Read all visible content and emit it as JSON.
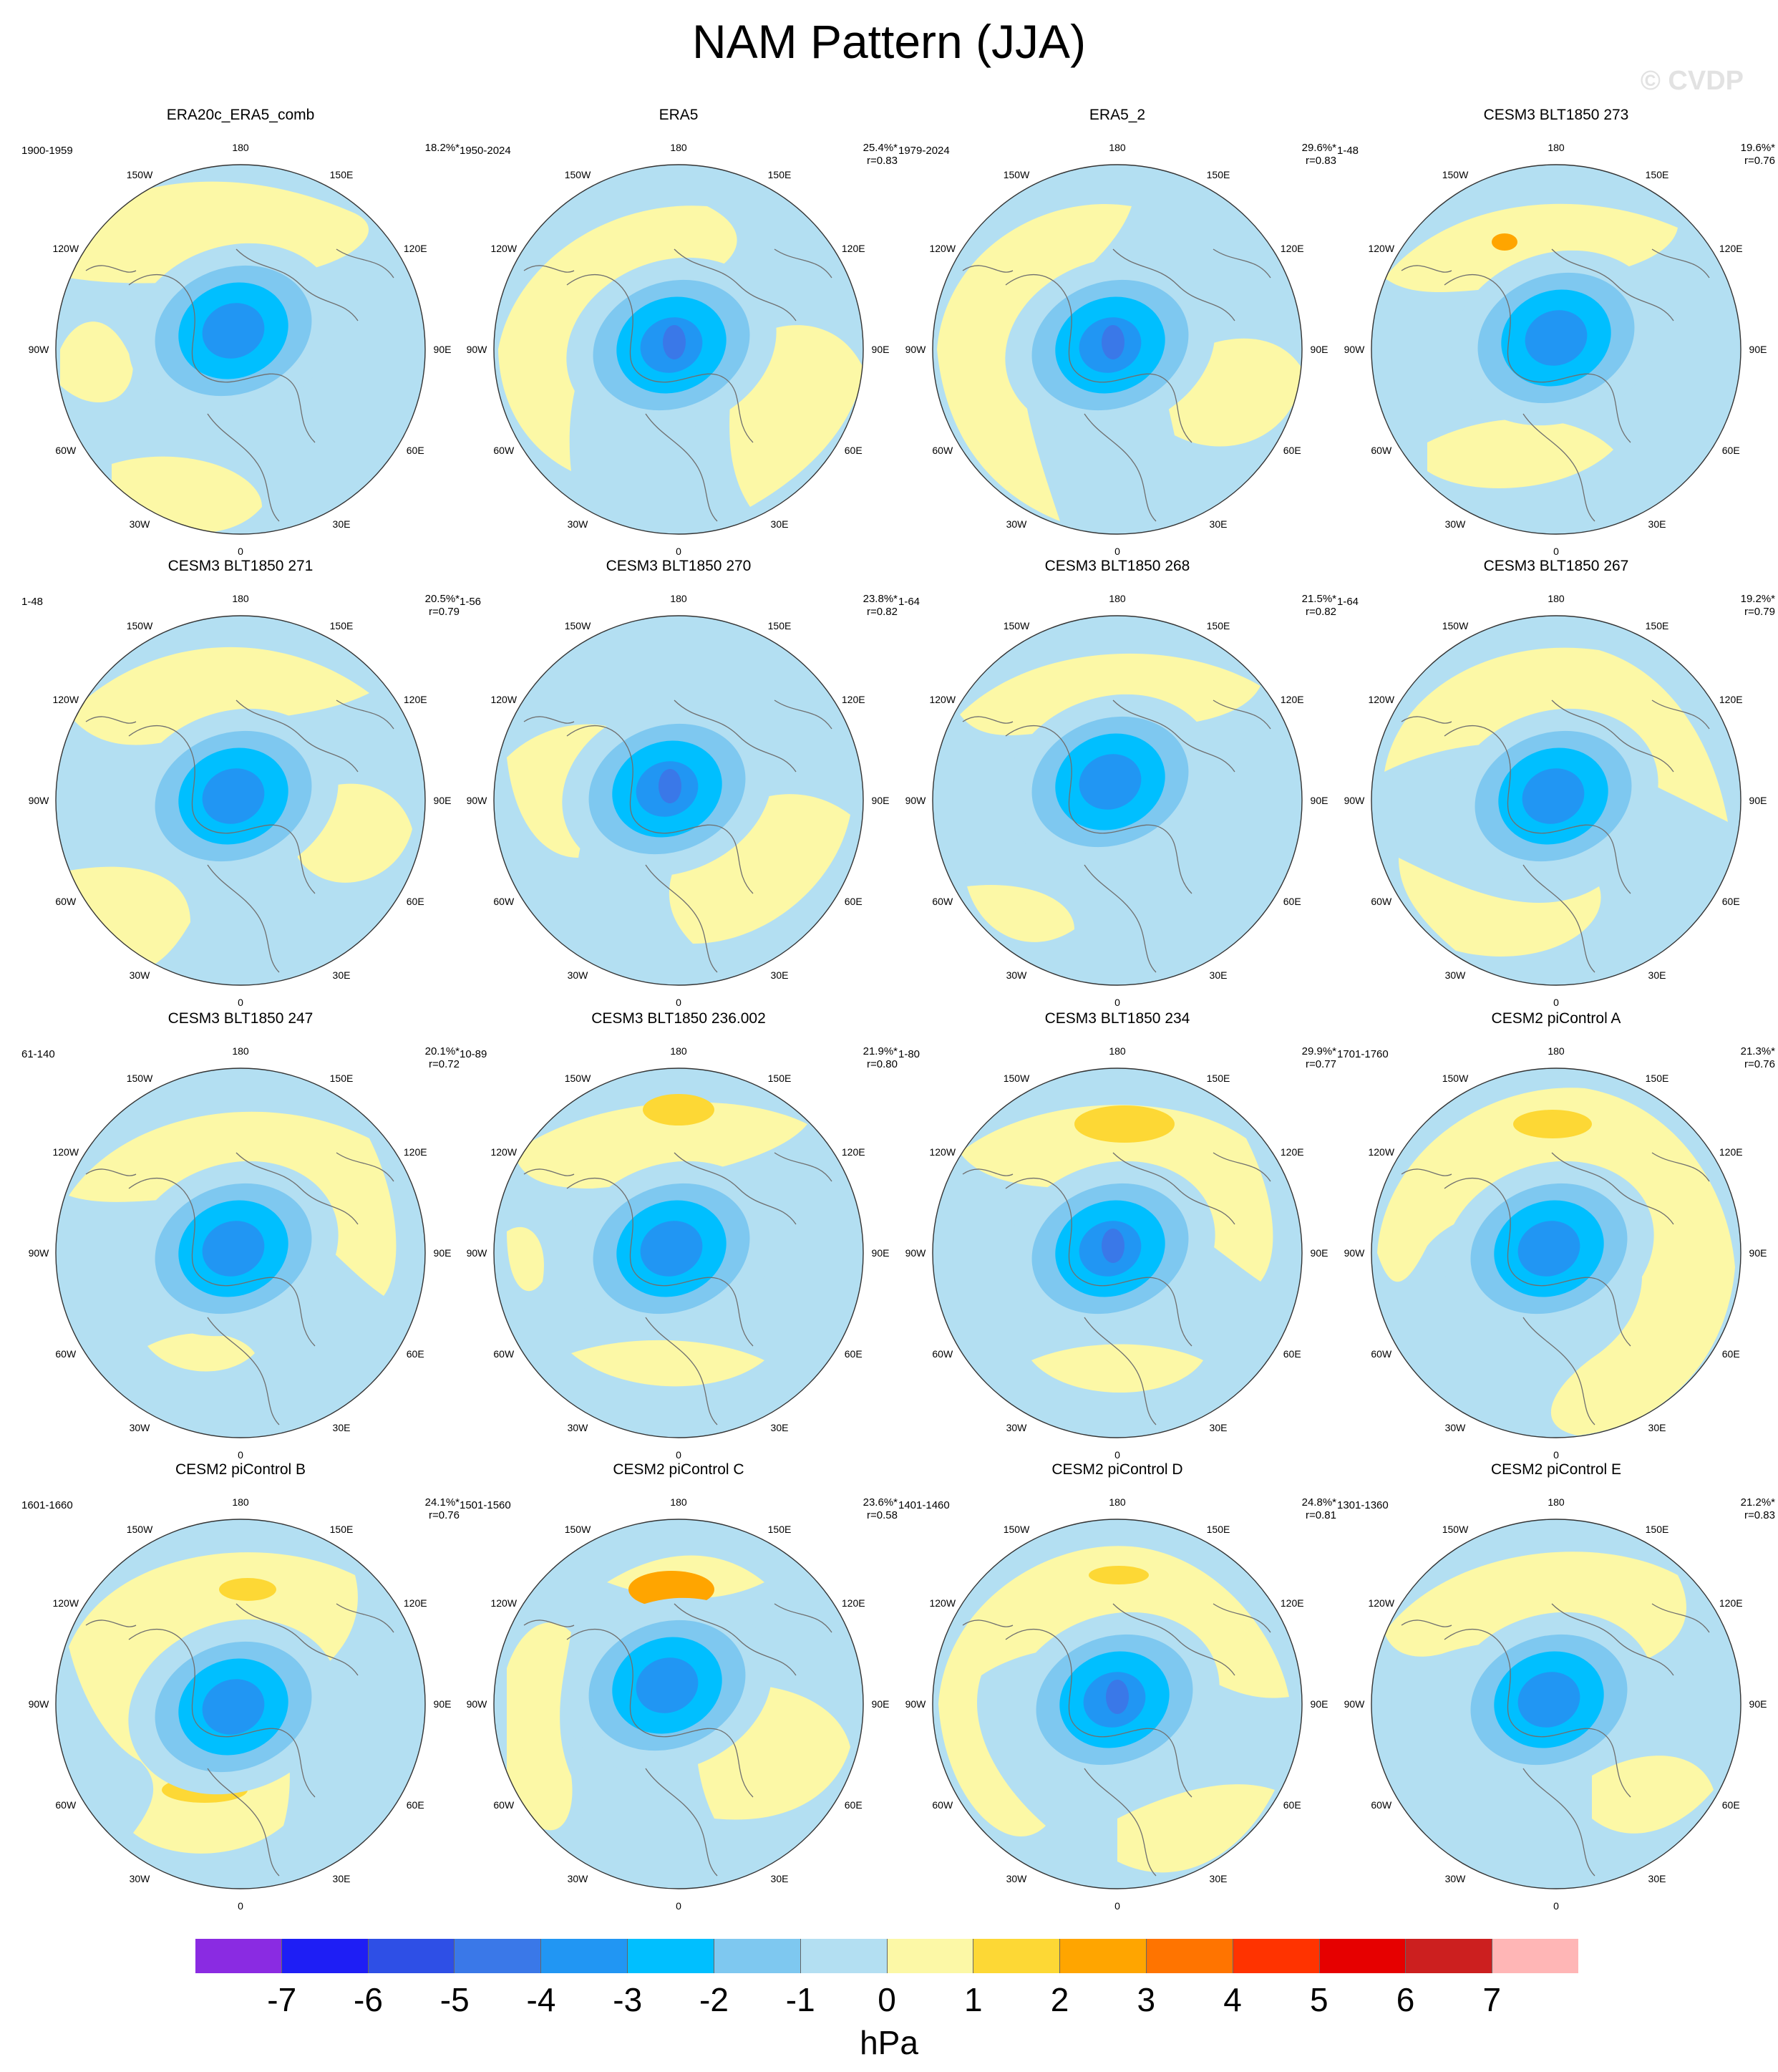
{
  "title": "NAM Pattern (JJA)",
  "watermark": "© CVDP",
  "longitude_labels": [
    "180",
    "150E",
    "120E",
    "90E",
    "60E",
    "30E",
    "0",
    "30W",
    "60W",
    "90W",
    "120W",
    "150W"
  ],
  "panels": [
    {
      "title": "ERA20c_ERA5_comb",
      "period": "1900-1959",
      "variance": "18.2%*",
      "corr": ""
    },
    {
      "title": "ERA5",
      "period": "1950-2024",
      "variance": "25.4%*",
      "corr": "r=0.83"
    },
    {
      "title": "ERA5_2",
      "period": "1979-2024",
      "variance": "29.6%*",
      "corr": "r=0.83"
    },
    {
      "title": "CESM3 BLT1850 273",
      "period": "1-48",
      "variance": "19.6%*",
      "corr": "r=0.76"
    },
    {
      "title": "CESM3 BLT1850 271",
      "period": "1-48",
      "variance": "20.5%*",
      "corr": "r=0.79"
    },
    {
      "title": "CESM3 BLT1850 270",
      "period": "1-56",
      "variance": "23.8%*",
      "corr": "r=0.82"
    },
    {
      "title": "CESM3 BLT1850 268",
      "period": "1-64",
      "variance": "21.5%*",
      "corr": "r=0.82"
    },
    {
      "title": "CESM3 BLT1850 267",
      "period": "1-64",
      "variance": "19.2%*",
      "corr": "r=0.79"
    },
    {
      "title": "CESM3 BLT1850 247",
      "period": "61-140",
      "variance": "20.1%*",
      "corr": "r=0.72"
    },
    {
      "title": "CESM3 BLT1850 236.002",
      "period": "10-89",
      "variance": "21.9%*",
      "corr": "r=0.80"
    },
    {
      "title": "CESM3 BLT1850 234",
      "period": "1-80",
      "variance": "29.9%*",
      "corr": "r=0.77"
    },
    {
      "title": "CESM2 piControl A",
      "period": "1701-1760",
      "variance": "21.3%*",
      "corr": "r=0.76"
    },
    {
      "title": "CESM2 piControl B",
      "period": "1601-1660",
      "variance": "24.1%*",
      "corr": "r=0.76"
    },
    {
      "title": "CESM2 piControl C",
      "period": "1501-1560",
      "variance": "23.6%*",
      "corr": "r=0.58"
    },
    {
      "title": "CESM2 piControl D",
      "period": "1401-1460",
      "variance": "24.8%*",
      "corr": "r=0.81"
    },
    {
      "title": "CESM2 piControl E",
      "period": "1301-1360",
      "variance": "21.2%*",
      "corr": "r=0.83"
    }
  ],
  "colorbar": {
    "colors": [
      "#8a2be2",
      "#1e1ef5",
      "#2e4fe6",
      "#3a78e8",
      "#2196f3",
      "#00bfff",
      "#7ec8f0",
      "#b3dff2",
      "#fcf8a6",
      "#fdd835",
      "#ffa500",
      "#ff7400",
      "#ff3300",
      "#e60000",
      "#cc1f1f",
      "#ffb6b6"
    ],
    "tick_labels": [
      "-7",
      "-6",
      "-5",
      "-4",
      "-3",
      "-2",
      "-1",
      "0",
      "1",
      "2",
      "3",
      "4",
      "5",
      "6",
      "7"
    ],
    "units": "hPa"
  }
}
